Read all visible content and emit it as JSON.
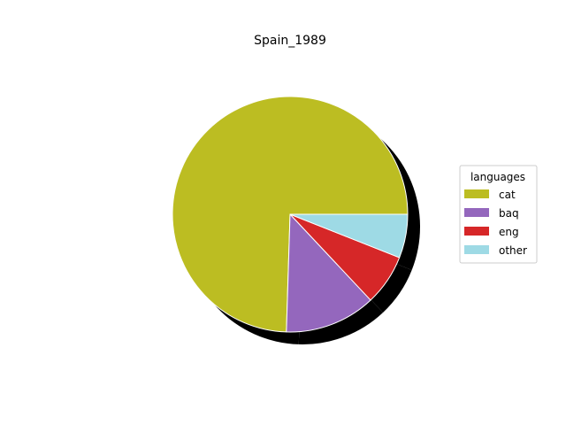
{
  "chart_data": {
    "type": "pie",
    "title": "Spain_1989",
    "legend_title": "languages",
    "legend_position": "right",
    "categories": [
      "cat",
      "baq",
      "eng",
      "other"
    ],
    "values": [
      74.5,
      12.5,
      7.0,
      6.0
    ],
    "colors": [
      "#bcbd22",
      "#9467bd",
      "#d62728",
      "#9edae5"
    ],
    "start_angle_deg": 0,
    "direction": "counterclockwise",
    "shadow": true,
    "wedge_edge_color": "#ffffff"
  }
}
